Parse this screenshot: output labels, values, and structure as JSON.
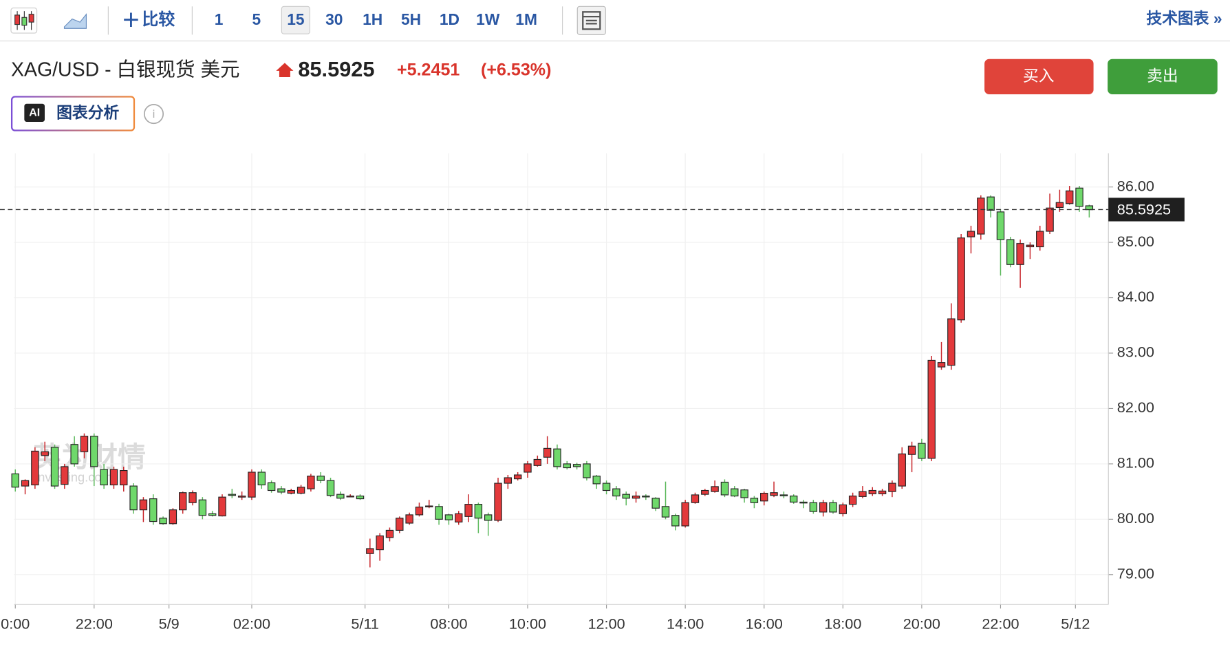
{
  "toolbar": {
    "compare": "比较",
    "intervals": [
      "1",
      "5",
      "15",
      "30",
      "1H",
      "5H",
      "1D",
      "1W",
      "1M"
    ],
    "active_interval": "15",
    "tech_chart": "技术图表 »"
  },
  "header": {
    "symbol": "XAG/USD - 白银现货 美元",
    "price": "85.5925",
    "change": "+5.2451",
    "change_pct": "(+6.53%)",
    "buy": "买入",
    "sell": "卖出",
    "ai_badge": "AI",
    "ai_label": "图表分析"
  },
  "watermark": {
    "cn": "英为财情",
    "en": "Investing.com"
  },
  "chart_data": {
    "type": "candlestick",
    "categories": [
      null,
      null,
      null,
      null,
      null,
      null,
      null,
      null,
      null,
      null,
      null,
      null,
      null,
      null,
      null,
      null,
      null,
      null,
      null,
      null,
      null,
      null,
      null,
      null,
      null,
      null,
      null,
      null,
      null,
      null,
      null,
      null,
      null,
      null,
      null,
      null,
      null,
      null,
      null,
      null,
      null,
      null,
      null,
      null,
      null,
      null,
      null,
      null,
      null,
      null,
      null,
      null,
      null,
      null,
      null,
      null,
      null,
      null,
      null,
      null,
      null,
      null,
      null,
      null,
      null,
      null,
      null,
      null,
      null,
      null,
      null,
      null,
      null,
      null,
      null,
      null,
      null,
      null,
      null,
      null,
      null,
      null,
      null,
      null,
      null,
      null,
      null,
      null,
      null,
      null,
      null,
      null,
      null,
      null,
      null,
      null,
      null,
      null,
      null,
      null,
      null,
      null,
      null,
      null,
      null,
      null,
      null,
      null,
      null,
      null
    ],
    "open": [
      80.82,
      80.6,
      80.62,
      81.15,
      81.3,
      80.63,
      81.35,
      81.22,
      81.5,
      80.9,
      80.62,
      80.62,
      80.6,
      80.17,
      80.37,
      80.02,
      79.92,
      80.17,
      80.3,
      80.35,
      80.1,
      80.06,
      80.45,
      80.4,
      80.4,
      80.85,
      80.66,
      80.55,
      80.47,
      80.47,
      80.55,
      80.78,
      80.7,
      80.45,
      80.42,
      80.42,
      79.38,
      79.45,
      79.67,
      79.8,
      79.93,
      80.08,
      80.23,
      80.23,
      80.08,
      79.95,
      80.05,
      80.27,
      80.08,
      79.98,
      80.65,
      80.73,
      80.85,
      80.97,
      81.12,
      81.27,
      81.0,
      80.99,
      81.0,
      80.78,
      80.65,
      80.55,
      80.45,
      80.38,
      80.42,
      80.38,
      80.23,
      80.07,
      79.88,
      80.3,
      80.45,
      80.5,
      80.67,
      80.55,
      80.53,
      80.38,
      80.33,
      80.43,
      80.44,
      80.42,
      80.31,
      80.3,
      80.13,
      80.3,
      80.1,
      80.27,
      80.41,
      80.46,
      80.46,
      80.5,
      80.6,
      81.17,
      81.37,
      81.1,
      82.75,
      82.78,
      83.6,
      85.1,
      85.15,
      85.82,
      85.55,
      85.05,
      84.6,
      84.92,
      84.92,
      85.2,
      85.63,
      85.7,
      85.98,
      85.66
    ],
    "high": [
      80.9,
      80.72,
      81.3,
      81.4,
      81.35,
      81.0,
      81.5,
      81.55,
      81.55,
      81.0,
      80.95,
      80.95,
      80.65,
      80.4,
      80.45,
      80.05,
      80.2,
      80.5,
      80.52,
      80.4,
      80.15,
      80.45,
      80.55,
      80.5,
      80.9,
      80.9,
      80.7,
      80.6,
      80.55,
      80.62,
      80.82,
      80.85,
      80.75,
      80.5,
      80.45,
      80.45,
      79.65,
      79.75,
      79.85,
      80.05,
      80.12,
      80.3,
      80.35,
      80.28,
      80.1,
      80.15,
      80.45,
      80.3,
      80.12,
      80.75,
      80.8,
      80.85,
      81.05,
      81.15,
      81.5,
      81.35,
      81.05,
      81.02,
      81.05,
      80.8,
      80.7,
      80.6,
      80.5,
      80.5,
      80.45,
      80.4,
      80.68,
      80.1,
      80.35,
      80.48,
      80.55,
      80.7,
      80.72,
      80.6,
      80.55,
      80.42,
      80.5,
      80.68,
      80.5,
      80.45,
      80.35,
      80.35,
      80.35,
      80.35,
      80.3,
      80.48,
      80.6,
      80.58,
      80.55,
      80.7,
      81.3,
      81.4,
      81.45,
      82.95,
      83.2,
      83.9,
      85.15,
      85.3,
      85.85,
      85.85,
      85.6,
      85.1,
      85.05,
      85.0,
      85.3,
      85.88,
      85.95,
      86.02,
      86.02,
      85.68
    ],
    "low": [
      80.5,
      80.45,
      80.55,
      81.05,
      80.55,
      80.55,
      80.95,
      81.1,
      80.6,
      80.55,
      80.55,
      80.5,
      80.1,
      79.95,
      79.9,
      79.9,
      79.9,
      80.1,
      80.25,
      80.0,
      80.05,
      80.05,
      80.38,
      80.35,
      80.35,
      80.55,
      80.48,
      80.45,
      80.45,
      80.45,
      80.5,
      80.65,
      80.4,
      80.35,
      80.4,
      80.35,
      79.13,
      79.25,
      79.6,
      79.75,
      79.9,
      80.05,
      80.2,
      79.9,
      79.9,
      79.9,
      79.95,
      79.75,
      79.7,
      79.95,
      80.55,
      80.7,
      80.75,
      80.95,
      81.0,
      80.9,
      80.9,
      80.9,
      80.7,
      80.55,
      80.45,
      80.35,
      80.25,
      80.3,
      80.35,
      80.15,
      80.0,
      79.8,
      79.85,
      80.28,
      80.42,
      80.48,
      80.4,
      80.4,
      80.3,
      80.2,
      80.25,
      80.4,
      80.38,
      80.28,
      80.2,
      80.1,
      80.05,
      80.1,
      80.05,
      80.22,
      80.38,
      80.42,
      80.42,
      80.4,
      80.55,
      80.85,
      81.05,
      81.05,
      82.7,
      82.7,
      83.55,
      84.8,
      85.05,
      85.45,
      84.4,
      84.55,
      84.18,
      84.7,
      84.85,
      85.15,
      85.55,
      85.68,
      85.55,
      85.45
    ],
    "close": [
      80.58,
      80.7,
      81.23,
      81.22,
      80.6,
      80.95,
      81.0,
      81.5,
      80.95,
      80.62,
      80.9,
      80.88,
      80.17,
      80.35,
      79.96,
      79.92,
      80.17,
      80.48,
      80.48,
      80.07,
      80.07,
      80.4,
      80.43,
      80.42,
      80.85,
      80.62,
      80.52,
      80.49,
      80.52,
      80.58,
      80.78,
      80.7,
      80.43,
      80.38,
      80.42,
      80.37,
      79.47,
      79.7,
      79.8,
      80.02,
      80.08,
      80.22,
      80.24,
      80.0,
      79.99,
      80.1,
      80.27,
      80.02,
      79.98,
      80.65,
      80.75,
      80.8,
      81.0,
      81.08,
      81.28,
      80.95,
      80.93,
      80.95,
      80.75,
      80.64,
      80.52,
      80.42,
      80.38,
      80.42,
      80.41,
      80.2,
      80.04,
      79.88,
      80.3,
      80.44,
      80.52,
      80.59,
      80.44,
      80.42,
      80.39,
      80.3,
      80.47,
      80.48,
      80.43,
      80.31,
      80.3,
      80.14,
      80.3,
      80.13,
      80.26,
      80.42,
      80.5,
      80.52,
      80.51,
      80.65,
      81.18,
      81.32,
      81.1,
      82.87,
      82.83,
      83.62,
      85.08,
      85.2,
      85.8,
      85.58,
      85.05,
      84.6,
      84.98,
      84.95,
      85.2,
      85.62,
      85.72,
      85.93,
      85.65,
      85.59
    ],
    "up_color": "#e3393b",
    "down_color": "#6fd86b",
    "ylim": [
      78.46,
      86.61
    ],
    "yticks": [
      {
        "value": 79,
        "label": "79.00"
      },
      {
        "value": 80,
        "label": "80.00"
      },
      {
        "value": 81,
        "label": "81.00"
      },
      {
        "value": 82,
        "label": "82.00"
      },
      {
        "value": 83,
        "label": "83.00"
      },
      {
        "value": 84,
        "label": "84.00"
      },
      {
        "value": 85,
        "label": "85.00"
      },
      {
        "value": 86,
        "label": "86.00"
      }
    ],
    "xticks": [
      {
        "value": 0,
        "label": "0:00"
      },
      {
        "value": 8,
        "label": "22:00"
      },
      {
        "value": 15.6,
        "label": "5/9"
      },
      {
        "value": 24,
        "label": "02:00"
      },
      {
        "value": 35.5,
        "label": "5/11"
      },
      {
        "value": 44,
        "label": "08:00"
      },
      {
        "value": 52,
        "label": "10:00"
      },
      {
        "value": 60,
        "label": "12:00"
      },
      {
        "value": 68,
        "label": "14:00"
      },
      {
        "value": 76,
        "label": "16:00"
      },
      {
        "value": 84,
        "label": "18:00"
      },
      {
        "value": 92,
        "label": "20:00"
      },
      {
        "value": 100,
        "label": "22:00"
      },
      {
        "value": 107.6,
        "label": "5/12"
      }
    ],
    "last_price": 85.5925,
    "grid": true
  }
}
